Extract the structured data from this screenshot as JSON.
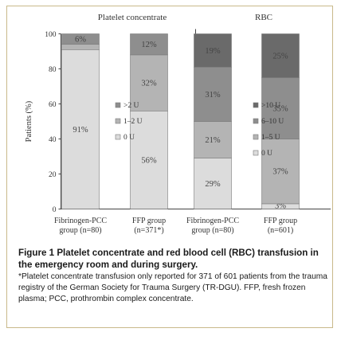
{
  "chart_data": {
    "type": "bar",
    "stacked": true,
    "ylabel": "Patients (%)",
    "yticks": [
      "0",
      "20",
      "40",
      "60",
      "80",
      "100"
    ],
    "ylim": [
      0,
      100
    ],
    "grid": false,
    "colors": {
      "bar_outline": "#7a7a7a",
      "lightest": "#dcdcdc",
      "light": "#b4b4b4",
      "mid": "#8e8e8e",
      "dark": "#6a6a6a"
    },
    "panels": [
      {
        "title": "Platelet concentrate",
        "categories": [
          "Fibrinogen-PCC\ngroup (n=80)",
          "FFP group\n(n=371*)"
        ],
        "series": [
          {
            "name": "0 U",
            "color": "#dcdcdc",
            "values": [
              91,
              56
            ],
            "labels": [
              "91%",
              "56%"
            ]
          },
          {
            "name": "1–2 U",
            "color": "#b4b4b4",
            "values": [
              3,
              32
            ],
            "labels": [
              "",
              "32%"
            ]
          },
          {
            "name": ">2 U",
            "color": "#8e8e8e",
            "values": [
              6,
              12
            ],
            "labels": [
              "6%",
              "12%"
            ]
          }
        ],
        "legend": [
          ">2 U",
          "1–2 U",
          "0 U"
        ]
      },
      {
        "title": "RBC",
        "categories": [
          "Fibrinogen-PCC\ngroup (n=80)",
          "FFP group\n(n=601)"
        ],
        "series": [
          {
            "name": "0 U",
            "color": "#dcdcdc",
            "values": [
              29,
              3
            ],
            "labels": [
              "29%",
              "3%"
            ]
          },
          {
            "name": "1–5 U",
            "color": "#b4b4b4",
            "values": [
              21,
              37
            ],
            "labels": [
              "21%",
              "37%"
            ]
          },
          {
            "name": "6–10 U",
            "color": "#8e8e8e",
            "values": [
              31,
              35
            ],
            "labels": [
              "31%",
              "35%"
            ]
          },
          {
            "name": ">10 U",
            "color": "#6a6a6a",
            "values": [
              19,
              25
            ],
            "labels": [
              "19%",
              "25%"
            ]
          }
        ],
        "legend": [
          ">10 U",
          "6–10 U",
          "1–5 U",
          "0 U"
        ]
      }
    ]
  },
  "caption": {
    "title": "Figure 1 Platelet concentrate and red blood cell (RBC) transfusion in the emergency room and during surgery.",
    "note": "*Platelet concentrate transfusion only reported for 371 of 601 patients from the trauma registry of the German Society for Trauma Surgery (TR-DGU). FFP, fresh frozen plasma; PCC, prothrombin complex concentrate."
  }
}
